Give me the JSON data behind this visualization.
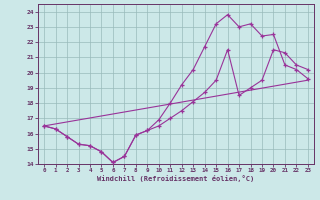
{
  "xlabel": "Windchill (Refroidissement éolien,°C)",
  "bg_color": "#cce8e8",
  "line_color": "#993399",
  "grid_color": "#99bbbb",
  "xlim": [
    -0.5,
    23.5
  ],
  "ylim": [
    14,
    24.5
  ],
  "xticks": [
    0,
    1,
    2,
    3,
    4,
    5,
    6,
    7,
    8,
    9,
    10,
    11,
    12,
    13,
    14,
    15,
    16,
    17,
    18,
    19,
    20,
    21,
    22,
    23
  ],
  "yticks": [
    14,
    15,
    16,
    17,
    18,
    19,
    20,
    21,
    22,
    23,
    24
  ],
  "line1_x": [
    0,
    1,
    2,
    3,
    4,
    5,
    6,
    7,
    8,
    9,
    10,
    11,
    12,
    13,
    14,
    15,
    16,
    17,
    18,
    19,
    20,
    21,
    22,
    23
  ],
  "line1_y": [
    16.5,
    16.3,
    15.8,
    15.3,
    15.2,
    14.8,
    14.1,
    14.5,
    15.9,
    16.2,
    16.5,
    17.0,
    17.5,
    18.1,
    18.7,
    19.5,
    21.5,
    18.5,
    19.0,
    19.5,
    21.5,
    21.3,
    20.5,
    20.2
  ],
  "line2_x": [
    0,
    1,
    2,
    3,
    4,
    5,
    6,
    7,
    8,
    9,
    10,
    11,
    12,
    13,
    14,
    15,
    16,
    17,
    18,
    19,
    20,
    21,
    22,
    23
  ],
  "line2_y": [
    16.5,
    16.3,
    15.8,
    15.3,
    15.2,
    14.8,
    14.1,
    14.5,
    15.9,
    16.2,
    16.9,
    18.0,
    19.2,
    20.2,
    21.7,
    23.2,
    23.8,
    23.0,
    23.2,
    22.4,
    22.5,
    20.5,
    20.2,
    19.6
  ],
  "line3_x": [
    0,
    23
  ],
  "line3_y": [
    16.5,
    19.5
  ]
}
